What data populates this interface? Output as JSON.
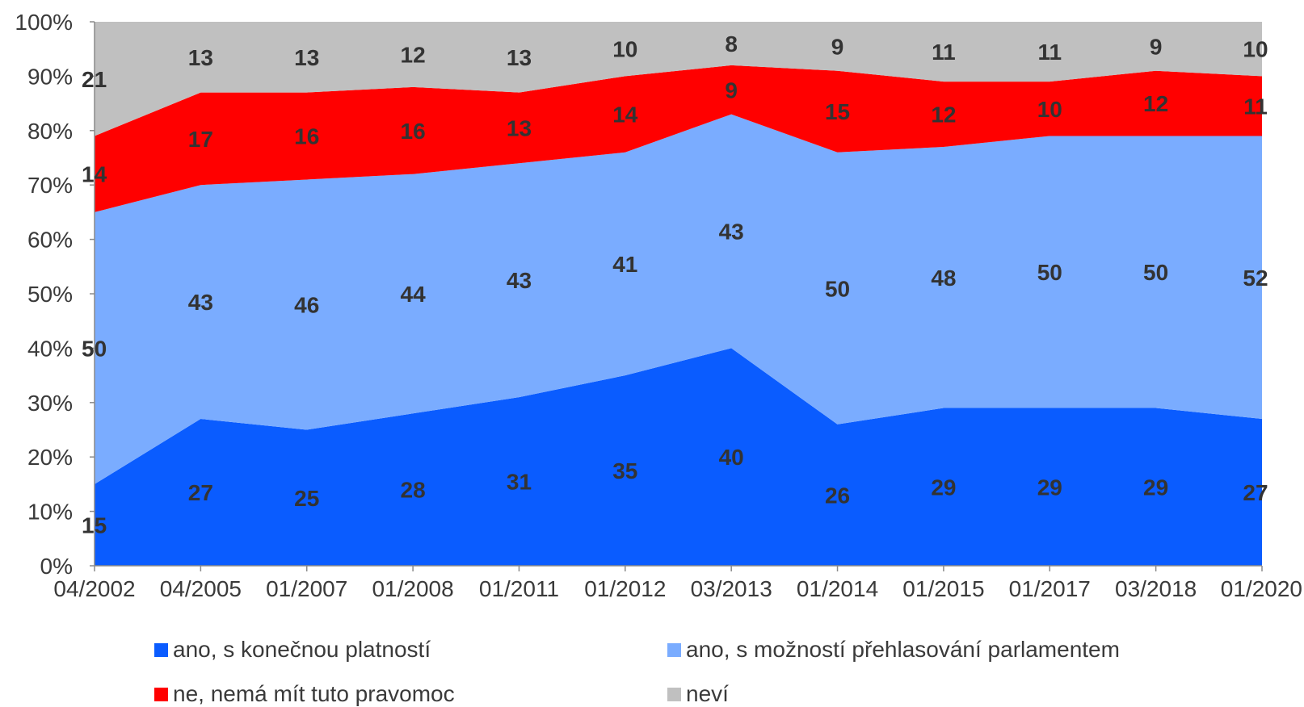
{
  "chart_data": {
    "type": "area",
    "stacked": true,
    "categories": [
      "04/2002",
      "04/2005",
      "01/2007",
      "01/2008",
      "01/2011",
      "01/2012",
      "03/2013",
      "01/2014",
      "01/2015",
      "01/2017",
      "03/2018",
      "01/2020"
    ],
    "series": [
      {
        "name": "ano, s konečnou platností",
        "color": "#0a5cff",
        "values": [
          15,
          27,
          25,
          28,
          31,
          35,
          40,
          26,
          29,
          29,
          29,
          27
        ]
      },
      {
        "name": "ano, s možností přehlasování parlamentem",
        "color": "#7aacff",
        "values": [
          50,
          43,
          46,
          44,
          43,
          41,
          43,
          50,
          48,
          50,
          50,
          52
        ]
      },
      {
        "name": "ne, nemá mít tuto pravomoc",
        "color": "#ff0000",
        "values": [
          14,
          17,
          16,
          16,
          13,
          14,
          9,
          15,
          12,
          10,
          12,
          11
        ]
      },
      {
        "name": "neví",
        "color": "#c0c0c0",
        "values": [
          21,
          13,
          13,
          12,
          13,
          10,
          8,
          9,
          11,
          11,
          9,
          10
        ]
      }
    ],
    "ylim": [
      0,
      100
    ],
    "yticks": [
      "0%",
      "10%",
      "20%",
      "30%",
      "40%",
      "50%",
      "60%",
      "70%",
      "80%",
      "90%",
      "100%"
    ],
    "legend_position": "bottom",
    "grid": false
  }
}
